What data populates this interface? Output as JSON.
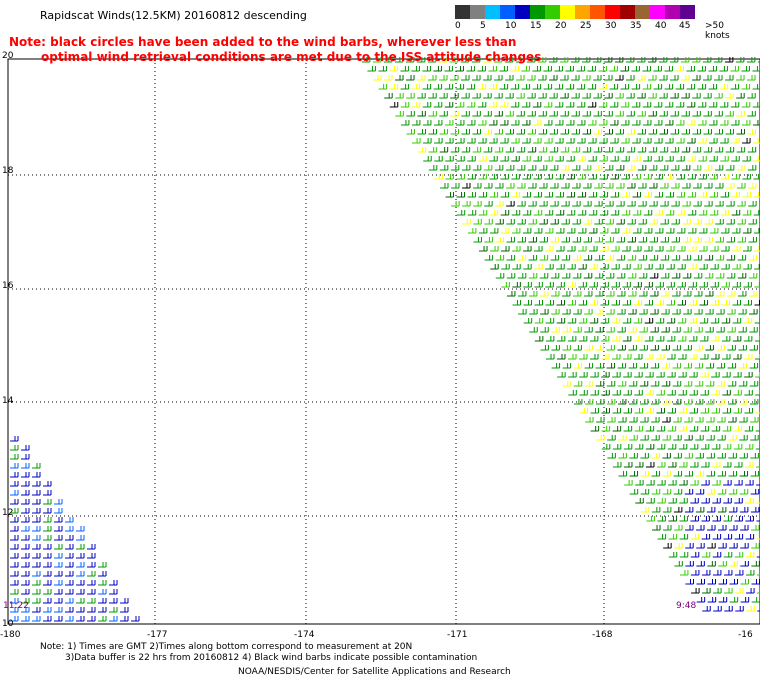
{
  "title": "Rapidscat Winds(12.5KM) 20160812 descending",
  "note": {
    "line1": "Note: black circles have been added to the wind barbs, wherever less than",
    "line2": "optimal wind retrieval conditions are met due to the ISS attitude changes"
  },
  "legend": {
    "labels": [
      "0",
      "5",
      "10",
      "15",
      "20",
      "25",
      "30",
      "35",
      "40",
      "45",
      ">50 knots"
    ],
    "colors": [
      "#333333",
      "#808080",
      "#00bfff",
      "#0060ff",
      "#0000c0",
      "#009900",
      "#33cc00",
      "#ffff00",
      "#ffa500",
      "#ff5500",
      "#ff0000",
      "#a00000",
      "#996633",
      "#ff00ff",
      "#b000b0",
      "#600090"
    ]
  },
  "axes": {
    "y_labels": [
      "20",
      "18",
      "16",
      "14",
      "12",
      "10"
    ],
    "x_labels": [
      "-180",
      "-177",
      "-174",
      "-171",
      "-168",
      "-16"
    ]
  },
  "times": {
    "left": "11:22",
    "right": "9:48"
  },
  "footnote": {
    "line1": "Note: 1) Times are GMT 2)Times along bottom correspond to measurement at 20N",
    "line2": "3)Data buffer is 22 hrs from 20160812 4) Black wind barbs indicate possible contamination"
  },
  "credit": "NOAA/NESDIS/Center for Satellite Applications and Research"
}
